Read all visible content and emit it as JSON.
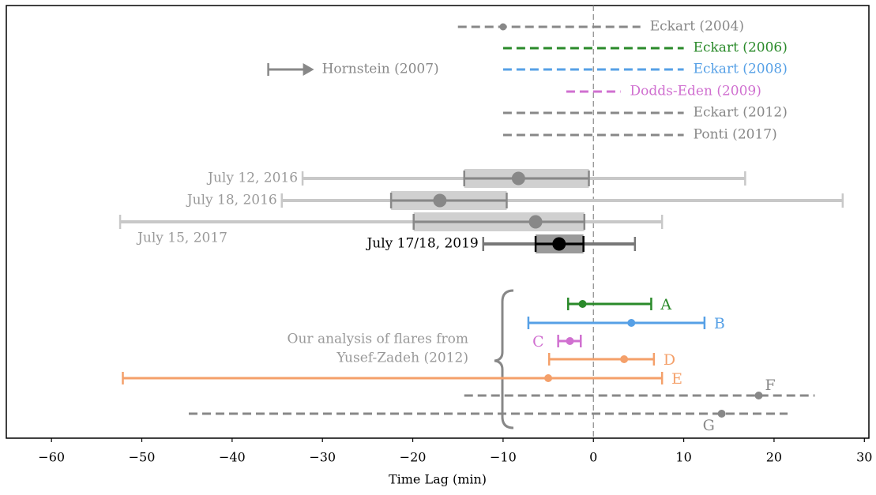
{
  "chart_data": {
    "type": "interval",
    "xlabel": "Time Lag (min)",
    "xlim": [
      -65,
      30.5
    ],
    "xticks": [
      {
        "value": -60,
        "label": "−60"
      },
      {
        "value": -50,
        "label": "−50"
      },
      {
        "value": -40,
        "label": "−40"
      },
      {
        "value": -30,
        "label": "−30"
      },
      {
        "value": -20,
        "label": "−20"
      },
      {
        "value": -10,
        "label": "−10"
      },
      0,
      10,
      20,
      30
    ],
    "reference_dashed": true,
    "reference": [
      {
        "name": "Eckart (2004)",
        "color": "#888888",
        "lo": -15,
        "hi": 5.2,
        "point": -10
      },
      {
        "name": "Eckart (2006)",
        "color": "#2a8a2a",
        "lo": -10,
        "hi": 10
      },
      {
        "name": "Eckart (2008)",
        "color": "#56a0e6",
        "lo": -10,
        "hi": 10
      },
      {
        "name": "Dodds-Eden (2009)",
        "color": "#d070d0",
        "lo": -3,
        "hi": 3
      },
      {
        "name": "Eckart (2012)",
        "color": "#888888",
        "lo": -10,
        "hi": 10
      },
      {
        "name": "Ponti (2017)",
        "color": "#888888",
        "lo": -10,
        "hi": 10
      }
    ],
    "limits": [
      {
        "name": "Hornstein (2007)",
        "color": "#888888",
        "lo": -36
      }
    ],
    "measurements": [
      {
        "name": "July 12, 2016",
        "color": "#888888",
        "outer_color": "#c8c8c8",
        "box_color": "#c8c8c8",
        "lo": -32.2,
        "hi": 16.8,
        "inner_lo": -14.3,
        "inner_hi": -0.5,
        "point": -8.3
      },
      {
        "name": "July 18, 2016",
        "color": "#888888",
        "outer_color": "#c8c8c8",
        "box_color": "#c8c8c8",
        "lo": -34.5,
        "hi": 27.6,
        "inner_lo": -22.4,
        "inner_hi": -9.6,
        "point": -17
      },
      {
        "name": "July 15, 2017",
        "color": "#888888",
        "outer_color": "#c8c8c8",
        "box_color": "#c8c8c8",
        "lo": -52.4,
        "hi": 7.6,
        "inner_lo": -19.9,
        "inner_hi": -1,
        "point": -6.4
      },
      {
        "name": "July 17/18, 2019",
        "color": "#000000",
        "outer_color": "#777777",
        "box_color": "#888888",
        "lo": -12.2,
        "hi": 4.6,
        "inner_lo": -6.4,
        "inner_hi": -1.1,
        "point": -3.8
      }
    ],
    "flares": [
      {
        "name": "A",
        "color": "#2a8a2a",
        "lo": -2.8,
        "hi": 6.4,
        "point": -1.2,
        "dashed": false
      },
      {
        "name": "B",
        "color": "#56a0e6",
        "lo": -7.2,
        "hi": 12.3,
        "point": 4.2,
        "dashed": false
      },
      {
        "name": "C",
        "color": "#d070d0",
        "lo": -3.9,
        "hi": -1.4,
        "point": -2.6,
        "dashed": false
      },
      {
        "name": "D",
        "color": "#f4a06a",
        "lo": -4.9,
        "hi": 6.7,
        "point": 3.4,
        "dashed": false
      },
      {
        "name": "E",
        "color": "#f4a06a",
        "lo": -52.1,
        "hi": 7.6,
        "point": -5,
        "dashed": false
      },
      {
        "name": "F",
        "color": "#888888",
        "lo": -14.3,
        "hi": 24.5,
        "point": 18.3,
        "dashed": true
      },
      {
        "name": "G",
        "color": "#888888",
        "lo": -44.8,
        "hi": 21.5,
        "point": 14.2,
        "dashed": true
      }
    ],
    "annotation": [
      "Our analysis of flares from",
      "Yusef-Zadeh (2012)"
    ]
  }
}
